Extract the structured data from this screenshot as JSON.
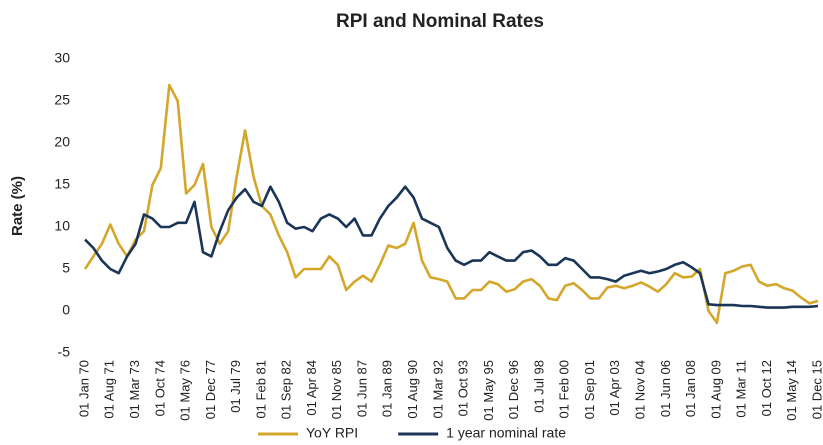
{
  "chart_data": {
    "type": "line",
    "title": "RPI and Nominal Rates",
    "y_label": "Rate (%)",
    "categories": [
      "01 Jan 70",
      null,
      null,
      "01 Aug 71",
      null,
      null,
      "01 Mar 73",
      null,
      null,
      "01 Oct 74",
      null,
      null,
      "01 May 76",
      null,
      null,
      "01 Dec 77",
      null,
      null,
      "01 Jul 79",
      null,
      null,
      "01 Feb 81",
      null,
      null,
      "01 Sep 82",
      null,
      null,
      "01 Apr 84",
      null,
      null,
      "01 Nov 85",
      null,
      null,
      "01 Jun 87",
      null,
      null,
      "01 Jan 89",
      null,
      null,
      "01 Aug 90",
      null,
      null,
      "01 Mar 92",
      null,
      null,
      "01 Oct 93",
      null,
      null,
      "01 May 95",
      null,
      null,
      "01 Dec 96",
      null,
      null,
      "01 Jul 98",
      null,
      null,
      "01 Feb 00",
      null,
      null,
      "01 Sep 01",
      null,
      null,
      "01 Apr 03",
      null,
      null,
      "01 Nov 04",
      null,
      null,
      "01 Jun 06",
      null,
      null,
      "01 Jan 08",
      null,
      null,
      "01 Aug 09",
      null,
      null,
      "01 Mar 11",
      null,
      null,
      "01 Oct 12",
      null,
      null,
      "01 May 14",
      null,
      null,
      "01 Dec 15"
    ],
    "series": [
      {
        "name": "YoY RPI",
        "color": "#d4a62a",
        "values": [
          5,
          6.5,
          8,
          10.3,
          8,
          6.5,
          8.5,
          9.5,
          15,
          17,
          26.9,
          25,
          14,
          15,
          17.5,
          10,
          8,
          9.5,
          16,
          21.5,
          16,
          12.5,
          11.5,
          9,
          7,
          4,
          5,
          5,
          5,
          6.5,
          5.5,
          2.5,
          3.5,
          4.2,
          3.5,
          5.5,
          7.8,
          7.5,
          8,
          10.5,
          6,
          4,
          3.8,
          3.5,
          1.5,
          1.5,
          2.5,
          2.5,
          3.5,
          3.2,
          2.3,
          2.6,
          3.5,
          3.8,
          3,
          1.5,
          1.3,
          3,
          3.3,
          2.5,
          1.5,
          1.5,
          2.8,
          3,
          2.7,
          3,
          3.4,
          2.9,
          2.3,
          3.2,
          4.5,
          4,
          4.1,
          5,
          0,
          -1.4,
          4.5,
          4.8,
          5.3,
          5.5,
          3.5,
          3,
          3.2,
          2.7,
          2.4,
          1.6,
          0.9,
          1.2
        ]
      },
      {
        "name": "1 year nominal rate",
        "color": "#1a3558",
        "values": [
          8.5,
          7.5,
          6,
          5,
          4.5,
          6.5,
          8,
          11.5,
          11,
          10,
          10,
          10.5,
          10.5,
          13,
          7,
          6.5,
          9.5,
          12,
          13.5,
          14.5,
          13,
          12.5,
          14.8,
          13,
          10.5,
          9.8,
          10,
          9.5,
          11,
          11.5,
          11,
          10,
          11,
          9,
          9,
          11,
          12.5,
          13.5,
          14.8,
          13.5,
          11,
          10.5,
          10,
          7.5,
          6,
          5.5,
          6,
          6,
          7,
          6.5,
          6,
          6,
          7,
          7.2,
          6.5,
          5.5,
          5.5,
          6.3,
          6,
          5,
          4,
          4,
          3.8,
          3.5,
          4.2,
          4.5,
          4.8,
          4.5,
          4.7,
          5,
          5.5,
          5.8,
          5.2,
          4.5,
          0.8,
          0.7,
          0.7,
          0.7,
          0.6,
          0.6,
          0.5,
          0.4,
          0.4,
          0.4,
          0.5,
          0.5,
          0.5,
          0.6
        ]
      }
    ],
    "ylim": [
      -5,
      30
    ],
    "yticks": [
      -5,
      0,
      5,
      10,
      15,
      20,
      25,
      30
    ],
    "legend": "bottom"
  }
}
